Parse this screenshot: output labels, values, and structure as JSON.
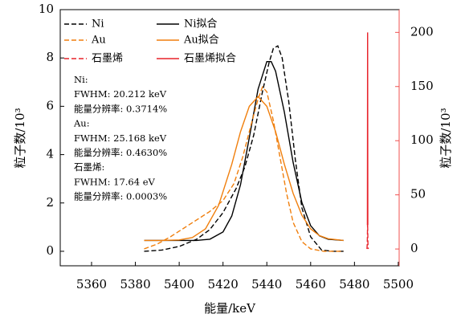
{
  "chart_data": {
    "type": "line",
    "xlabel": "能量/keV",
    "ylabel": "粒子数/10³",
    "y2label": "粒子数/10³",
    "xlim": [
      5345.7,
      5500.4
    ],
    "xticks": [
      5360,
      5380,
      5400,
      5420,
      5440,
      5460,
      5480,
      5500
    ],
    "ylim": [
      -0.6,
      10
    ],
    "yticks": [
      0,
      2,
      4,
      6,
      8,
      10
    ],
    "y2lim": [
      -15.5,
      221
    ],
    "y2ticks": [
      0,
      50,
      100,
      150,
      200
    ],
    "y2color": "#f0504f",
    "annotations": [
      "Ni:",
      "FWHM: 20.212 keV",
      "能量分辨率: 0.3714%",
      "Au:",
      "FWHM: 25.168 keV",
      "能量分辨率: 0.4630%",
      "石墨烯:",
      "FWHM: 17.64 eV",
      "能量分辨率: 0.0003%"
    ],
    "series": [
      {
        "name": "Ni",
        "color": "#000000",
        "line_style": "dashed",
        "x": [
          5384,
          5392,
          5400,
          5408,
          5414,
          5420,
          5426,
          5430,
          5434,
          5438,
          5441,
          5443,
          5445,
          5447,
          5450,
          5453,
          5456,
          5460,
          5465,
          5470,
          5475
        ],
        "values": [
          0,
          0.05,
          0.2,
          0.5,
          0.9,
          1.6,
          2.6,
          3.5,
          4.8,
          6.6,
          7.8,
          8.4,
          8.5,
          8.0,
          6.2,
          3.8,
          1.8,
          0.6,
          0.05,
          0,
          0
        ]
      },
      {
        "name": "Ni拟合",
        "color": "#000000",
        "line_style": "solid",
        "x": [
          5384,
          5392,
          5400,
          5408,
          5414,
          5420,
          5424,
          5428,
          5432,
          5436,
          5440,
          5442,
          5444,
          5448,
          5452,
          5456,
          5460,
          5464,
          5468,
          5475
        ],
        "values": [
          0.45,
          0.45,
          0.45,
          0.45,
          0.5,
          0.8,
          1.46,
          2.76,
          4.7,
          6.71,
          7.85,
          7.85,
          7.45,
          5.76,
          3.68,
          2.02,
          1.06,
          0.64,
          0.5,
          0.45
        ]
      },
      {
        "name": "Au",
        "color": "#f07f0d",
        "line_style": "dashed",
        "x": [
          5384,
          5390,
          5396,
          5402,
          5408,
          5414,
          5420,
          5425,
          5429,
          5433,
          5436,
          5438,
          5440,
          5443,
          5446,
          5449,
          5452,
          5456,
          5460,
          5466,
          5475
        ],
        "values": [
          0.1,
          0.3,
          0.6,
          0.95,
          1.3,
          1.65,
          2.1,
          2.8,
          3.9,
          5.3,
          6.3,
          6.8,
          6.6,
          5.4,
          3.9,
          2.4,
          1.2,
          0.4,
          0.1,
          0,
          0
        ]
      },
      {
        "name": "Au拟合",
        "color": "#f07f0d",
        "line_style": "solid",
        "x": [
          5384,
          5392,
          5400,
          5406,
          5412,
          5418,
          5424,
          5428,
          5432,
          5436,
          5440,
          5444,
          5448,
          5452,
          5456,
          5460,
          5464,
          5468,
          5475
        ],
        "values": [
          0.45,
          0.45,
          0.47,
          0.57,
          0.93,
          1.9,
          3.6,
          4.95,
          6.0,
          6.4,
          6.0,
          4.95,
          3.6,
          2.4,
          1.49,
          0.93,
          0.65,
          0.52,
          0.45
        ]
      },
      {
        "name": "石墨烯",
        "color": "#e8222a",
        "line_style": "dashed",
        "axis": "y2",
        "x": [
          5485.7,
          5485.85,
          5486,
          5486.15,
          5486.3
        ],
        "values": [
          0,
          5,
          24,
          5,
          0
        ]
      },
      {
        "name": "石墨烯拟合",
        "color": "#e8222a",
        "line_style": "solid",
        "axis": "y2",
        "x": [
          5485.9,
          5486,
          5486.1
        ],
        "values": [
          22,
          200,
          22
        ]
      }
    ]
  }
}
